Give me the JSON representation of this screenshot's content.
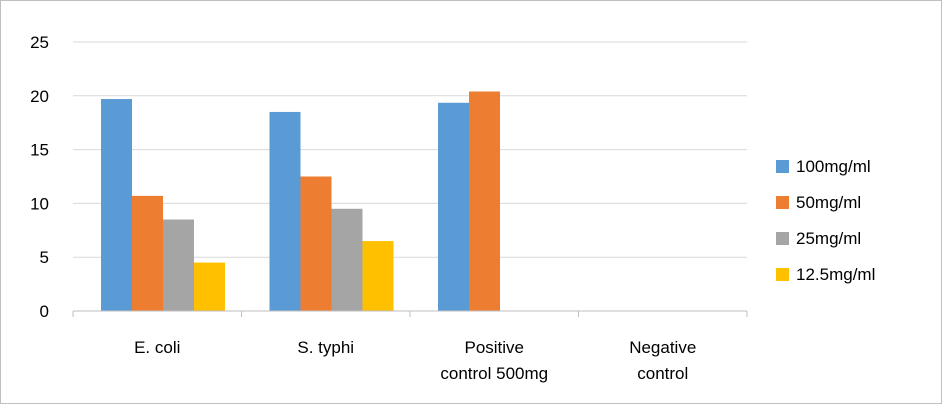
{
  "chart_data": {
    "type": "bar",
    "title": "",
    "xlabel": "",
    "ylabel": "",
    "categories": [
      [
        "E. coli"
      ],
      [
        "S. typhi"
      ],
      [
        "Positive",
        "control 500mg"
      ],
      [
        "Negative",
        "control"
      ]
    ],
    "series": [
      {
        "name": "100mg/ml",
        "color": "#5b9bd5",
        "values": [
          19.7,
          18.5,
          19.35,
          0
        ]
      },
      {
        "name": "50mg/ml",
        "color": "#ed7d31",
        "values": [
          10.7,
          12.5,
          20.4,
          0
        ]
      },
      {
        "name": "25mg/ml",
        "color": "#a5a5a5",
        "values": [
          8.5,
          9.5,
          0,
          0
        ]
      },
      {
        "name": "12.5mg/ml",
        "color": "#ffc000",
        "values": [
          4.5,
          6.5,
          0,
          0
        ]
      }
    ],
    "ylim": [
      0,
      25
    ],
    "yticks": [
      0,
      5,
      10,
      15,
      20,
      25
    ],
    "grid": true,
    "legend_position": "right"
  },
  "colors": {
    "gridline": "#d9d9d9",
    "axis": "#bfbfbf",
    "frame": "#bfbfbf"
  }
}
